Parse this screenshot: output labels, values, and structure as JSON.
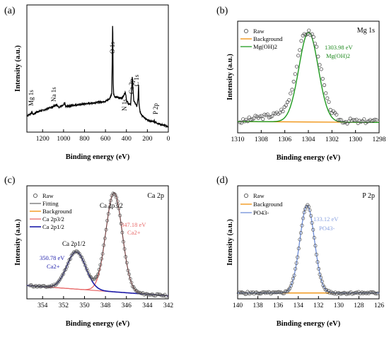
{
  "panels": [
    {
      "id": "a",
      "label": "(a)",
      "corner": "",
      "xlabel": "Binding energy (eV)",
      "ylabel": "Intensity (a.u.)",
      "peak_labels": [
        "Mg 1s",
        "Na 1s",
        "O 1s",
        "N 1s",
        "Ca 2p",
        "C 1s",
        "P 2p"
      ],
      "legend": [],
      "annotations": []
    },
    {
      "id": "b",
      "label": "(b)",
      "corner": "Mg 1s",
      "xlabel": "Binding energy (eV)",
      "ylabel": "Intensity (a.u.)",
      "peak_labels": [],
      "legend": [
        "Raw",
        "Background",
        "Mg(OH)2"
      ],
      "annotations": [
        "1303.98 eV",
        "Mg(OH)2"
      ]
    },
    {
      "id": "c",
      "label": "(c)",
      "corner": "Ca 2p",
      "xlabel": "Binding energy (eV)",
      "ylabel": "Intensity (a.u.)",
      "peak_labels": [
        "Ca 2p3/2",
        "Ca 2p1/2"
      ],
      "legend": [
        "Raw",
        "Fitting",
        "Background",
        "Ca 2p3/2",
        "Ca 2p1/2"
      ],
      "annotations": [
        "347.18 eV",
        "Ca2+",
        "350.78 eV",
        "Ca2+"
      ]
    },
    {
      "id": "d",
      "label": "(d)",
      "corner": "P 2p",
      "xlabel": "Binding energy (eV)",
      "ylabel": "Intensity (a.u.)",
      "peak_labels": [],
      "legend": [
        "Raw",
        "Background",
        "PO43-"
      ],
      "annotations": [
        "133.12 eV",
        "PO43-"
      ]
    }
  ],
  "colors": {
    "raw": "#555555",
    "background": "#f0900a",
    "mgoh2": "#1f9a1f",
    "fitting": "#444444",
    "ca32": "#e86a6a",
    "ca12": "#1c1caa",
    "po4": "#6f8ed8",
    "mg_anno": "#1f8a1f",
    "ca32_anno": "#e86a6a",
    "ca12_anno": "#1c1caa",
    "po4_anno": "#8aa2e0"
  },
  "chart_data": [
    {
      "type": "line",
      "panel": "a",
      "xlim": [
        1350,
        0
      ],
      "x_ticks": [
        1200,
        1000,
        800,
        600,
        400,
        200,
        0
      ],
      "y_ticks": "none",
      "series": [
        {
          "x": [
            1350,
            1320,
            1304,
            1290,
            1250,
            1200,
            1150,
            1100,
            1072,
            1040,
            1000,
            990,
            980,
            900,
            800,
            700,
            600,
            560,
            540,
            536,
            531,
            527,
            522,
            510,
            480,
            440,
            412,
            404,
            398,
            380,
            360,
            349,
            345,
            330,
            300,
            288,
            284,
            280,
            270,
            250,
            220,
            200,
            180,
            140,
            134,
            130,
            100,
            60,
            20,
            0
          ],
          "y": [
            22,
            24,
            27,
            24,
            28,
            30,
            33,
            36,
            39,
            35,
            38,
            42,
            36,
            38,
            40,
            42,
            44,
            48,
            56,
            100,
            175,
            75,
            55,
            50,
            50,
            49,
            58,
            53,
            45,
            40,
            39,
            65,
            83,
            45,
            36,
            50,
            70,
            42,
            28,
            22,
            18,
            15,
            14,
            13,
            15,
            12,
            10,
            8,
            6,
            5
          ]
        }
      ]
    },
    {
      "type": "line",
      "panel": "b",
      "xlim": [
        1310,
        1298
      ],
      "x_ticks": [
        1310,
        1308,
        1306,
        1304,
        1302,
        1300,
        1298
      ],
      "y_ticks": "none",
      "fit": {
        "Mg(OH)2": {
          "center": 1303.98,
          "fwhm": 1.9
        }
      },
      "series": [
        {
          "name": "Raw",
          "x": [
            1309.6,
            1309.0,
            1308.4,
            1307.8,
            1307.2,
            1306.6,
            1306.0,
            1305.6,
            1305.2,
            1304.8,
            1304.4,
            1304.0,
            1303.6,
            1303.2,
            1302.8,
            1302.4,
            1302.0,
            1301.4,
            1300.8,
            1300.2,
            1299.6,
            1299.0,
            1298.4
          ],
          "y": [
            8,
            10,
            12,
            13,
            14,
            16,
            22,
            32,
            52,
            80,
            97,
            100,
            96,
            79,
            52,
            30,
            18,
            10,
            8,
            9,
            7,
            9,
            8
          ]
        },
        {
          "name": "Background",
          "x": [
            1310,
            1298
          ],
          "y": [
            8,
            7
          ]
        },
        {
          "name": "Mg(OH)2",
          "center": 1303.98,
          "height": 100
        }
      ]
    },
    {
      "type": "line",
      "panel": "c",
      "xlim": [
        355.5,
        342
      ],
      "x_ticks": [
        354,
        352,
        350,
        348,
        346,
        344,
        342
      ],
      "y_ticks": "none",
      "fit": {
        "Ca 2p3/2": {
          "center": 347.18
        },
        "Ca 2p1/2": {
          "center": 350.78
        }
      },
      "series": [
        {
          "name": "Raw",
          "x": [
            355,
            354,
            353,
            352,
            351.5,
            351,
            350.8,
            350.5,
            350,
            349.5,
            349,
            348.5,
            348,
            347.6,
            347.2,
            346.8,
            346.4,
            346,
            345.5,
            345,
            344,
            343,
            342.2
          ],
          "y": [
            12,
            14,
            18,
            30,
            44,
            52,
            53,
            50,
            40,
            32,
            42,
            68,
            94,
            108,
            112,
            105,
            84,
            52,
            24,
            10,
            5,
            4,
            3
          ]
        },
        {
          "name": "Fitting",
          "note": "sum of components"
        },
        {
          "name": "Background",
          "x": [
            355.5,
            342
          ],
          "y": [
            12,
            1
          ]
        },
        {
          "name": "Ca 2p3/2",
          "center": 347.18,
          "height": 110
        },
        {
          "name": "Ca 2p1/2",
          "center": 350.78,
          "height": 43
        }
      ]
    },
    {
      "type": "line",
      "panel": "d",
      "xlim": [
        140,
        126
      ],
      "x_ticks": [
        140,
        138,
        136,
        134,
        132,
        130,
        128,
        126
      ],
      "y_ticks": "none",
      "fit": {
        "PO43-": {
          "center": 133.12
        }
      },
      "series": [
        {
          "name": "Raw",
          "x": [
            139.8,
            138,
            136,
            135,
            134.5,
            134,
            133.6,
            133.2,
            132.8,
            132.4,
            132,
            131.5,
            131,
            130,
            128,
            126.2
          ],
          "y": [
            4,
            4,
            5,
            12,
            36,
            76,
            97,
            100,
            92,
            66,
            34,
            12,
            6,
            4,
            4,
            4
          ]
        },
        {
          "name": "Background",
          "x": [
            140,
            126
          ],
          "y": [
            4,
            4
          ]
        },
        {
          "name": "PO43-",
          "center": 133.12,
          "height": 96
        }
      ]
    }
  ]
}
